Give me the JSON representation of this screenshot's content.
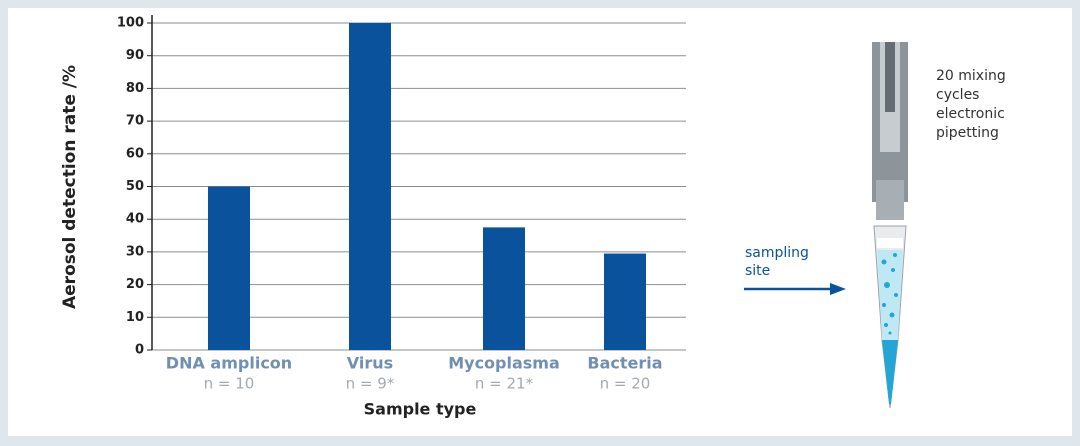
{
  "chart_data": {
    "type": "bar",
    "y_label": "Aerosol detection rate  /%",
    "x_label": "Sample type",
    "categories": [
      "DNA amplicon",
      "Virus",
      "Mycoplasma",
      "Bacteria"
    ],
    "sample_sizes": [
      "n = 10",
      "n = 9*",
      "n = 21*",
      "n = 20"
    ],
    "values": [
      50,
      100,
      37.5,
      29.5
    ],
    "color": "#0a539c",
    "ylim": [
      0,
      100
    ],
    "yticks": [
      0,
      10,
      20,
      30,
      40,
      50,
      60,
      70,
      80,
      90,
      100
    ],
    "grid": true
  },
  "illustration": {
    "mixing_note": [
      "20 mixing",
      "cycles",
      "electronic",
      "pipetting"
    ],
    "sampling_note": [
      "sampling",
      "site"
    ]
  }
}
